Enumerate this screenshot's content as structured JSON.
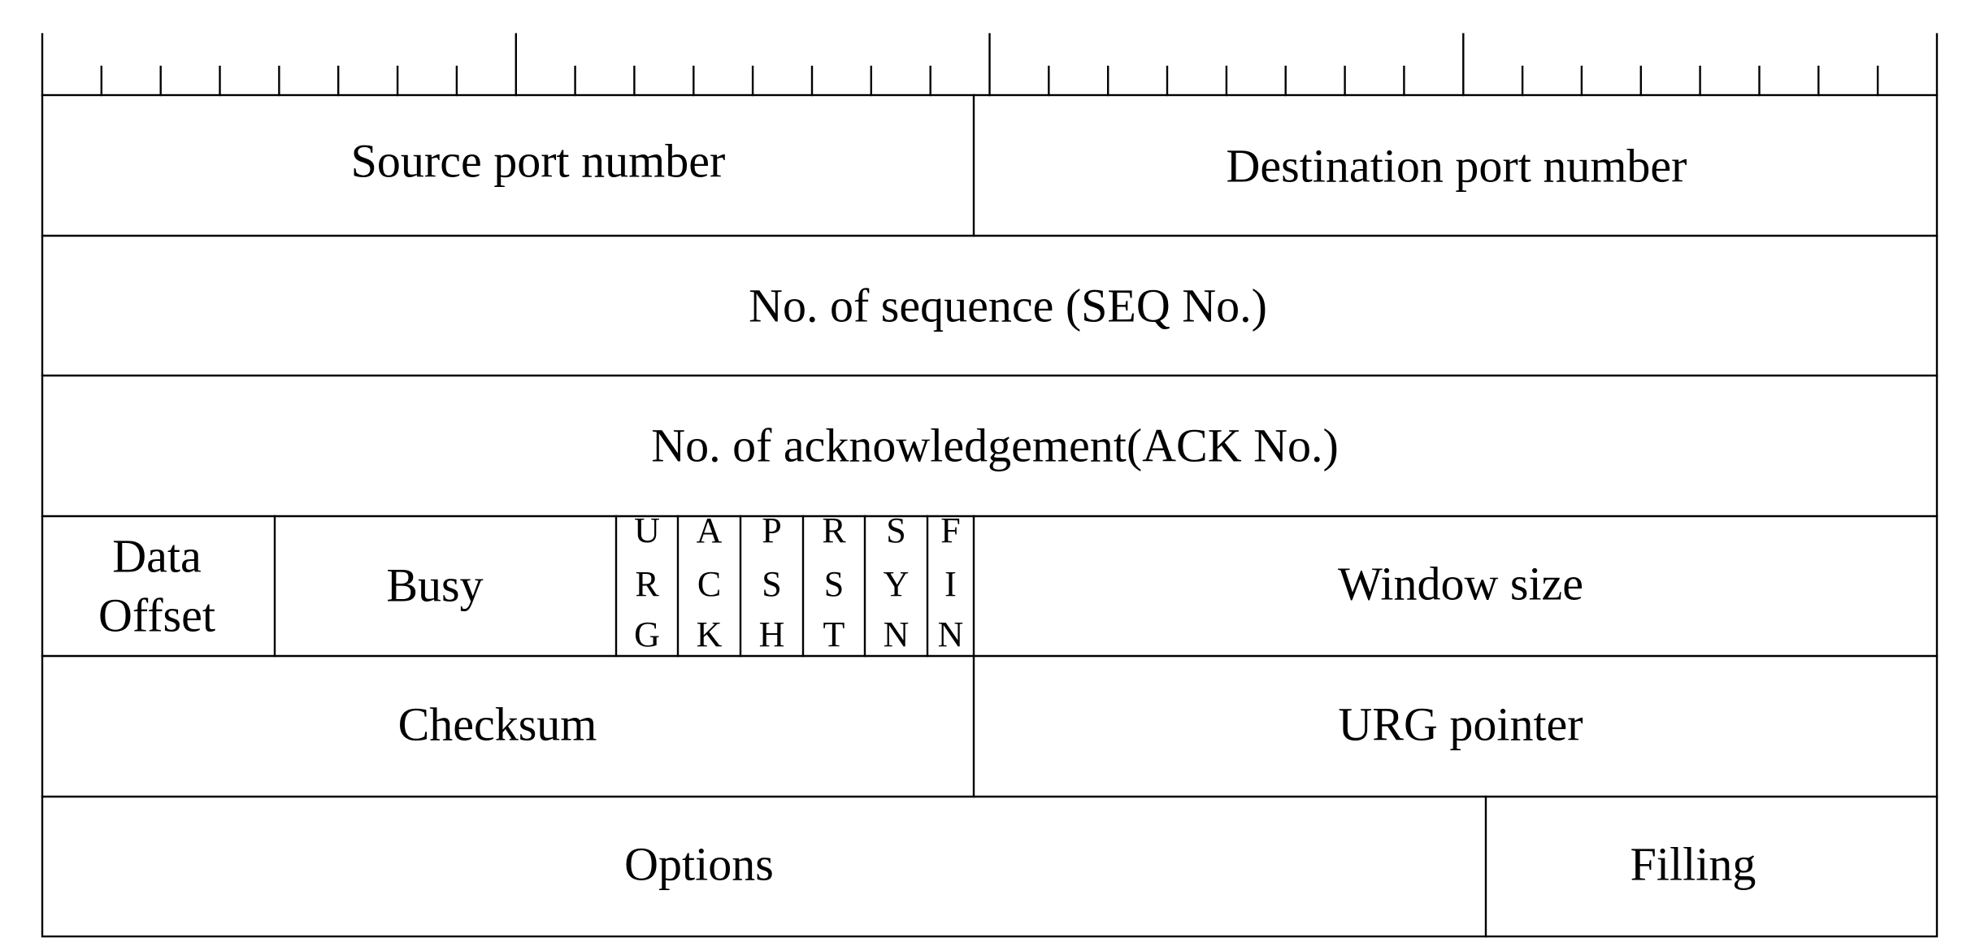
{
  "diagram": {
    "ruler": {
      "bits": 32
    },
    "fields": {
      "source_port": "Source port number",
      "destination_port": "Destination port number",
      "sequence_number": "No. of sequence (SEQ No.)",
      "ack_number": "No. of acknowledgement(ACK No.)",
      "data_offset": [
        "Data",
        "Offset"
      ],
      "reserved": "Busy",
      "window_size": "Window size",
      "checksum": "Checksum",
      "urgent_pointer": "URG pointer",
      "options": "Options",
      "padding": "Filling"
    },
    "flags": [
      {
        "name": "urg",
        "letters": [
          "U",
          "R",
          "G"
        ]
      },
      {
        "name": "ack",
        "letters": [
          "A",
          "C",
          "K"
        ]
      },
      {
        "name": "psh",
        "letters": [
          "P",
          "S",
          "H"
        ]
      },
      {
        "name": "rst",
        "letters": [
          "R",
          "S",
          "T"
        ]
      },
      {
        "name": "syn",
        "letters": [
          "S",
          "Y",
          "N"
        ]
      },
      {
        "name": "fin",
        "letters": [
          "F",
          "I",
          "N"
        ]
      }
    ]
  }
}
